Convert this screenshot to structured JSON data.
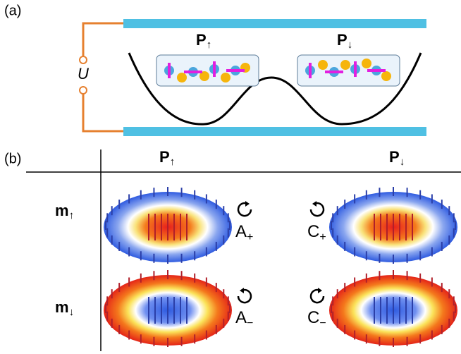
{
  "panel_a": {
    "label": "(a)",
    "voltage": "U",
    "states": [
      {
        "main": "P",
        "sub": "↑"
      },
      {
        "main": "P",
        "sub": "↓"
      }
    ]
  },
  "panel_b": {
    "label": "(b)",
    "columns": [
      {
        "main": "P",
        "sub": "↑"
      },
      {
        "main": "P",
        "sub": "↓"
      }
    ],
    "rows": [
      {
        "main": "m",
        "sub": "↑"
      },
      {
        "main": "m",
        "sub": "↓"
      }
    ],
    "modes": [
      [
        {
          "main": "A",
          "sub": "+"
        },
        {
          "main": "C",
          "sub": "+"
        }
      ],
      [
        {
          "main": "A",
          "sub": "−"
        },
        {
          "main": "C",
          "sub": "−"
        }
      ]
    ]
  }
}
